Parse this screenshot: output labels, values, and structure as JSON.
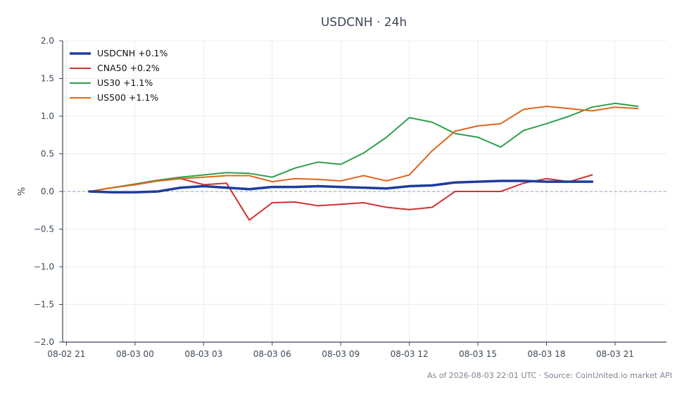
{
  "chart_data": {
    "type": "line",
    "title": "USDCNH · 24h",
    "xlabel": "",
    "ylabel": "%",
    "ylim": [
      -2.0,
      2.0
    ],
    "yticks": [
      2.0,
      1.5,
      1.0,
      0.5,
      0.0,
      -0.5,
      -1.0,
      -1.5,
      -2.0
    ],
    "ytick_labels": [
      "2.0",
      "1.5",
      "1.0",
      "0.5",
      "0.0",
      "−0.5",
      "−1.0",
      "−1.5",
      "−2.0"
    ],
    "xlim": [
      "2026-08-02 20:50",
      "2026-08-03 23:15"
    ],
    "xticks": [
      "2026-08-02 21:00",
      "2026-08-03 00:00",
      "2026-08-03 03:00",
      "2026-08-03 06:00",
      "2026-08-03 09:00",
      "2026-08-03 12:00",
      "2026-08-03 15:00",
      "2026-08-03 18:00",
      "2026-08-03 21:00"
    ],
    "xtick_labels": [
      "08-02 21",
      "08-03 00",
      "08-03 03",
      "08-03 06",
      "08-03 09",
      "08-03 12",
      "08-03 15",
      "08-03 18",
      "08-03 21"
    ],
    "grid": true,
    "zero_line": true,
    "legend_position": "top-left",
    "x_time_start": "2026-08-02 22:00",
    "x_step_hours": 1,
    "series": [
      {
        "name": "USDCNH +0.1%",
        "color": "#1f3c9e",
        "width": 3.5,
        "values": [
          0.0,
          -0.01,
          -0.01,
          0.0,
          0.05,
          0.07,
          0.05,
          0.03,
          0.06,
          0.06,
          0.07,
          0.06,
          0.05,
          0.04,
          0.07,
          0.08,
          0.12,
          0.13,
          0.14,
          0.14,
          0.13,
          0.13,
          0.13
        ]
      },
      {
        "name": "CNA50 +0.2%",
        "color": "#d03232",
        "width": 2,
        "values": [
          0.0,
          0.05,
          0.09,
          0.14,
          0.17,
          0.09,
          0.11,
          -0.38,
          -0.15,
          -0.14,
          -0.19,
          -0.17,
          -0.15,
          -0.21,
          -0.24,
          -0.21,
          0.0,
          0.0,
          0.0,
          0.11,
          0.17,
          0.13,
          0.22
        ]
      },
      {
        "name": "US30 +1.1%",
        "color": "#2ca04c",
        "width": 2,
        "values": [
          0.0,
          0.05,
          0.1,
          0.15,
          0.19,
          0.22,
          0.25,
          0.24,
          0.19,
          0.31,
          0.39,
          0.36,
          0.51,
          0.72,
          0.98,
          0.92,
          0.77,
          0.72,
          0.59,
          0.81,
          0.9,
          1.0,
          1.12,
          1.17,
          1.13
        ]
      },
      {
        "name": "US500 +1.1%",
        "color": "#e0661f",
        "width": 2,
        "values": [
          0.0,
          0.05,
          0.09,
          0.14,
          0.17,
          0.19,
          0.21,
          0.21,
          0.13,
          0.17,
          0.16,
          0.14,
          0.21,
          0.14,
          0.22,
          0.54,
          0.8,
          0.87,
          0.9,
          1.09,
          1.13,
          1.1,
          1.07,
          1.12,
          1.1
        ]
      }
    ]
  },
  "footer": {
    "text": "As of 2026-08-03 22:01 UTC · Source: CoinUnited.io market API"
  }
}
